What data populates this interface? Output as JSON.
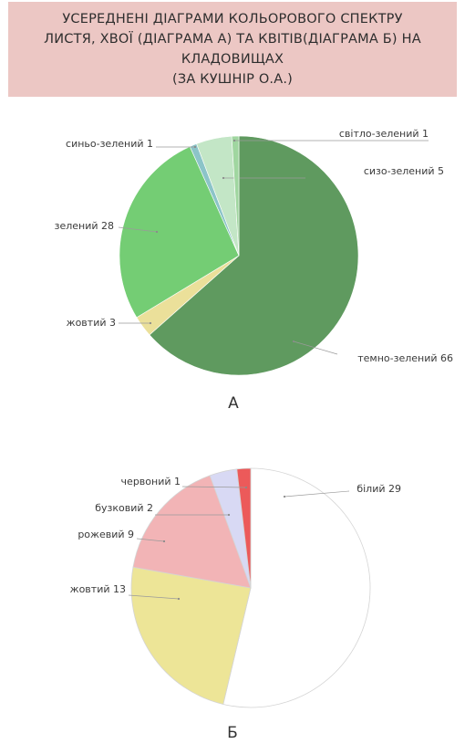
{
  "title": {
    "lines": [
      "УСЕРЕДНЕНІ ДІАГРАМИ КОЛЬОРОВОГО СПЕКТРУ",
      "ЛИСТЯ, ХВОЇ (ДІАГРАМА А) ТА КВІТІВ(ДІАГРАМА Б) НА",
      "КЛАДОВИЩАХ",
      "(ЗА КУШНІР О.А.)"
    ]
  },
  "chart_data": [
    {
      "type": "pie",
      "caption": "А",
      "slices": [
        {
          "label": "темно-зелений 66",
          "value": 66,
          "color": "#5f9a5f"
        },
        {
          "label": "жовтий 3",
          "value": 3,
          "color": "#ebe09a"
        },
        {
          "label": "зелений 28",
          "value": 28,
          "color": "#74cd74"
        },
        {
          "label": "синьо-зелений 1",
          "value": 1,
          "color": "#8cc4c8"
        },
        {
          "label": "сизо-зелений 5",
          "value": 5,
          "color": "#c3e6c6"
        },
        {
          "label": "світло-зелений 1",
          "value": 1,
          "color": "#a0d6a0"
        }
      ]
    },
    {
      "type": "pie",
      "caption": "Б",
      "slices": [
        {
          "label": "білий 29",
          "value": 29,
          "color": "#ffffff"
        },
        {
          "label": "жовтий 13",
          "value": 13,
          "color": "#ede597"
        },
        {
          "label": "рожевий 9",
          "value": 9,
          "color": "#f2b4b6"
        },
        {
          "label": "бузковий 2",
          "value": 2,
          "color": "#d8d9f4"
        },
        {
          "label": "червоний 1",
          "value": 1,
          "color": "#ec5a5a"
        }
      ]
    }
  ]
}
